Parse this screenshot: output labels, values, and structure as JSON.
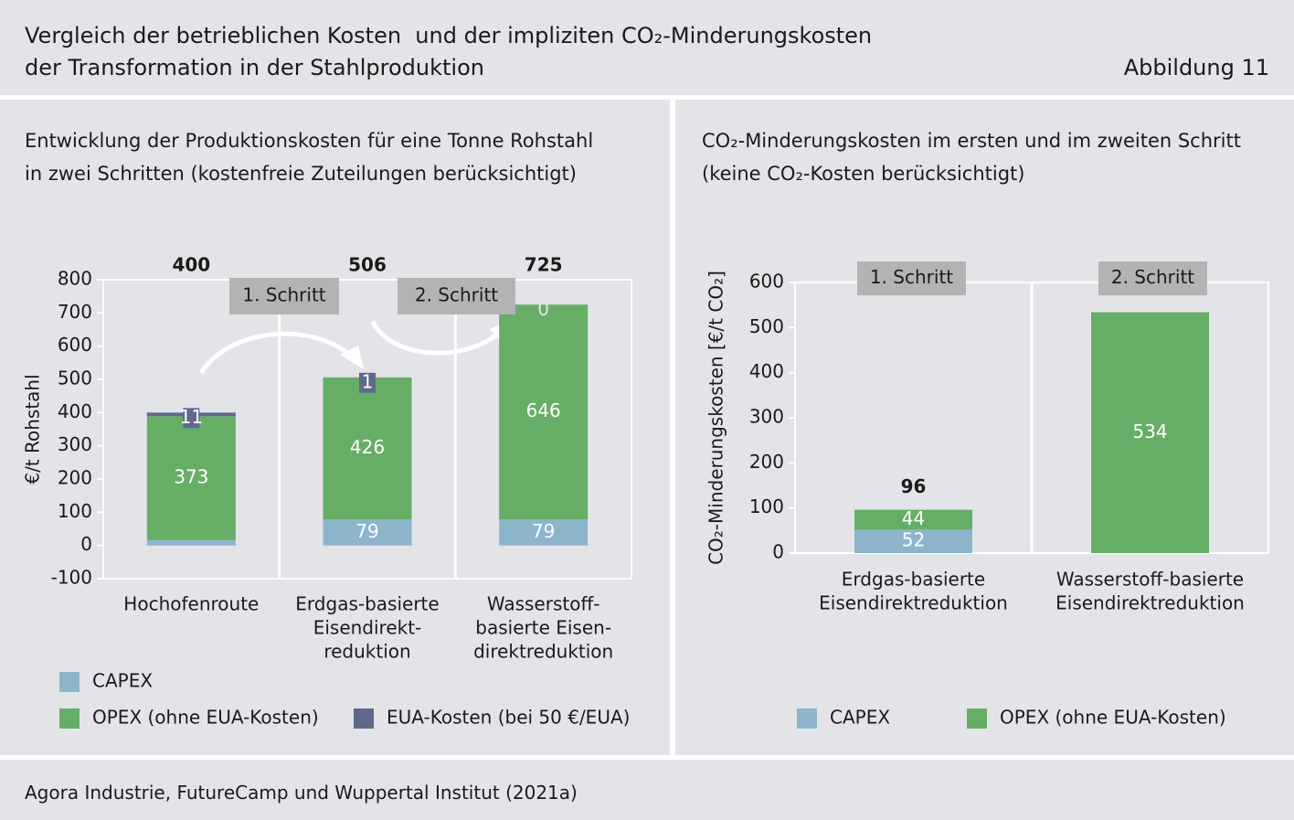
{
  "header": {
    "title": [
      "Vergleich der betrieblichen Kosten  und der impliziten CO₂-Minderungskosten",
      "der Transformation in der Stahlproduktion"
    ],
    "figure_label": "Abbildung 11"
  },
  "source": "Agora Industrie, FutureCamp und Wuppertal Institut (2021a)",
  "chart_data": [
    {
      "type": "bar",
      "stacked": true,
      "subtitle": [
        "Entwicklung der Produktionskosten für eine Tonne Rohstahl",
        "in zwei Schritten (kostenfreie Zuteilungen berücksichtigt)"
      ],
      "ylabel": "€/t Rohstahl",
      "categories": [
        [
          "Hochofenroute"
        ],
        [
          "Erdgas-basierte",
          "Eisendirekt-",
          "reduktion"
        ],
        [
          "Wasserstoff-",
          "basierte Eisen-",
          "direktreduktion"
        ]
      ],
      "series": [
        {
          "name": "CAPEX",
          "color": "#8cb5cc",
          "values": [
            16,
            79,
            79
          ]
        },
        {
          "name": "OPEX (ohne EUA-Kosten)",
          "color": "#66ad66",
          "values": [
            373,
            426,
            646
          ]
        },
        {
          "name": "EUA-Kosten (bei 50 €/EUA)",
          "color": "#5f6a8a",
          "values": [
            11,
            1,
            0
          ]
        }
      ],
      "totals": [
        400,
        506,
        725
      ],
      "annotations": [
        "1. Schritt",
        "2. Schritt"
      ],
      "ylim": [
        -100,
        800
      ],
      "yticks": [
        -100,
        0,
        100,
        200,
        300,
        400,
        500,
        600,
        700,
        800
      ]
    },
    {
      "type": "bar",
      "stacked": true,
      "subtitle": [
        "CO₂-Minderungskosten im ersten und im zweiten Schritt",
        "(keine CO₂-Kosten berücksichtigt)"
      ],
      "ylabel": "CO₂-Minderungskosten [€/t CO₂]",
      "categories": [
        [
          "Erdgas-basierte",
          "Eisendirektreduktion"
        ],
        [
          "Wasserstoff-basierte",
          "Eisendirektreduktion"
        ]
      ],
      "series": [
        {
          "name": "CAPEX",
          "color": "#8cb5cc",
          "values": [
            52,
            null
          ]
        },
        {
          "name": "OPEX (ohne EUA-Kosten)",
          "color": "#66ad66",
          "values": [
            44,
            534
          ]
        }
      ],
      "totals": [
        96,
        null
      ],
      "annotations": [
        "1. Schritt",
        "2. Schritt"
      ],
      "ylim": [
        0,
        600
      ],
      "yticks": [
        0,
        100,
        200,
        300,
        400,
        500,
        600
      ]
    }
  ]
}
